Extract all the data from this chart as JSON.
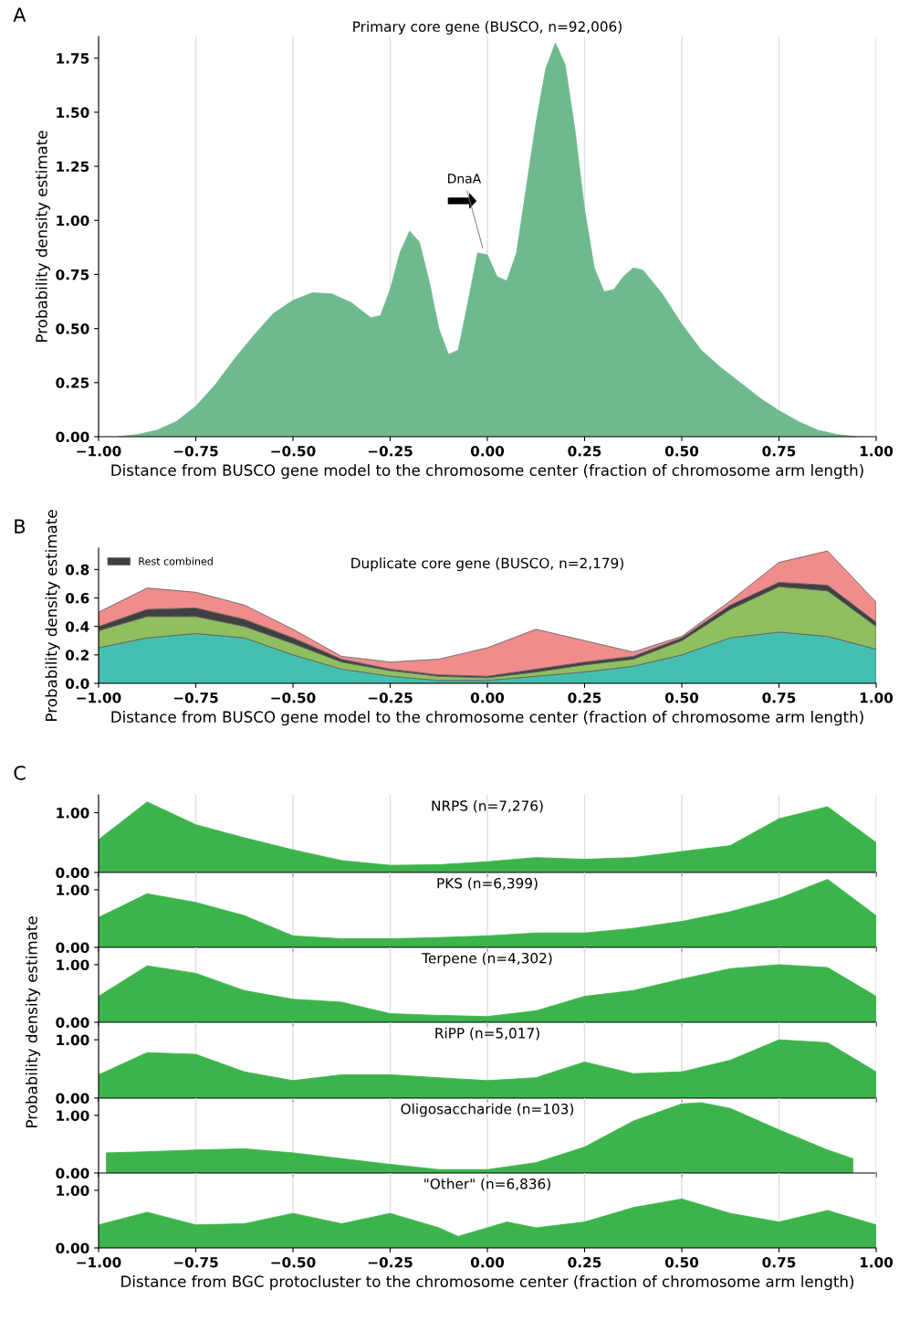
{
  "chart_data": [
    {
      "type": "area",
      "title": "Primary core gene (BUSCO, n=92,006)",
      "xlabel": "Distance from BUSCO gene model to the chromosome center (fraction of chromosome arm length)",
      "ylabel": "Probability density estimate",
      "annotations": [
        "A",
        {
          "text": "DnaA",
          "x": -0.01,
          "y": 0.86
        }
      ],
      "series": [
        {
          "color": "#6fb98f",
          "x": [
            -0.95,
            -0.9,
            -0.85,
            -0.8,
            -0.75,
            -0.7,
            -0.65,
            -0.6,
            -0.55,
            -0.5,
            -0.45,
            -0.4,
            -0.35,
            -0.3,
            -0.275,
            -0.25,
            -0.225,
            -0.2,
            -0.175,
            -0.15,
            -0.125,
            -0.1,
            -0.075,
            -0.05,
            -0.025,
            0,
            0.025,
            0.05,
            0.075,
            0.1,
            0.125,
            0.15,
            0.175,
            0.2,
            0.225,
            0.25,
            0.275,
            0.3,
            0.325,
            0.35,
            0.375,
            0.4,
            0.45,
            0.5,
            0.55,
            0.6,
            0.65,
            0.7,
            0.75,
            0.8,
            0.85,
            0.9,
            0.95
          ],
          "values": [
            0,
            0.01,
            0.03,
            0.07,
            0.14,
            0.24,
            0.36,
            0.47,
            0.57,
            0.63,
            0.665,
            0.66,
            0.62,
            0.55,
            0.56,
            0.68,
            0.85,
            0.95,
            0.9,
            0.72,
            0.5,
            0.38,
            0.4,
            0.62,
            0.85,
            0.84,
            0.74,
            0.72,
            0.85,
            1.15,
            1.45,
            1.7,
            1.82,
            1.72,
            1.42,
            1.05,
            0.78,
            0.67,
            0.68,
            0.74,
            0.78,
            0.77,
            0.66,
            0.52,
            0.4,
            0.32,
            0.25,
            0.18,
            0.12,
            0.07,
            0.03,
            0.01,
            0
          ]
        }
      ],
      "xlim": [
        -1,
        1
      ],
      "ylim": [
        0,
        1.85
      ],
      "xticks": [
        {
          "value": -1,
          "label": "−1.00"
        },
        {
          "value": -0.75,
          "label": "−0.75"
        },
        {
          "value": -0.5,
          "label": "−0.50"
        },
        {
          "value": -0.25,
          "label": "−0.25"
        },
        {
          "value": 0,
          "label": "0.00"
        },
        {
          "value": 0.25,
          "label": "0.25"
        },
        {
          "value": 0.5,
          "label": "0.50"
        },
        {
          "value": 0.75,
          "label": "0.75"
        },
        {
          "value": 1,
          "label": "1.00"
        }
      ],
      "yticks": [
        {
          "value": 0,
          "label": "0.00"
        },
        {
          "value": 0.25,
          "label": "0.25"
        },
        {
          "value": 0.5,
          "label": "0.50"
        },
        {
          "value": 0.75,
          "label": "0.75"
        },
        {
          "value": 1,
          "label": "1.00"
        },
        {
          "value": 1.25,
          "label": "1.25"
        },
        {
          "value": 1.5,
          "label": "1.50"
        },
        {
          "value": 1.75,
          "label": "1.75"
        }
      ],
      "grid": "x"
    },
    {
      "type": "area",
      "stacked": true,
      "title": "Duplicate core gene (BUSCO, n=2,179)",
      "xlabel": "Distance from BUSCO gene model to the chromosome center (fraction of chromosome arm length)",
      "ylabel": "Probability density estimate",
      "annotations": [
        "B"
      ],
      "x": [
        -1,
        -0.875,
        -0.75,
        -0.625,
        -0.5,
        -0.375,
        -0.25,
        -0.125,
        0,
        0.125,
        0.25,
        0.375,
        0.5,
        0.625,
        0.75,
        0.875,
        1
      ],
      "series": [
        {
          "color": "#45c0b0",
          "values": [
            0.25,
            0.32,
            0.35,
            0.32,
            0.2,
            0.1,
            0.05,
            0.02,
            0.02,
            0.05,
            0.08,
            0.12,
            0.2,
            0.32,
            0.36,
            0.33,
            0.24
          ]
        },
        {
          "color": "#8fbf5f",
          "values": [
            0.12,
            0.15,
            0.12,
            0.08,
            0.08,
            0.05,
            0.04,
            0.03,
            0.02,
            0.03,
            0.05,
            0.05,
            0.1,
            0.2,
            0.32,
            0.32,
            0.16
          ]
        },
        {
          "name": "Rest combined",
          "color": "#404040",
          "values": [
            0.03,
            0.05,
            0.06,
            0.05,
            0.04,
            0.02,
            0.01,
            0.01,
            0.01,
            0.02,
            0.02,
            0.02,
            0.02,
            0.03,
            0.03,
            0.04,
            0.03
          ]
        },
        {
          "color": "#f08c8c",
          "values": [
            0.1,
            0.15,
            0.11,
            0.1,
            0.06,
            0.02,
            0.05,
            0.11,
            0.2,
            0.28,
            0.15,
            0.03,
            0.01,
            0.03,
            0.14,
            0.24,
            0.14
          ]
        }
      ],
      "xlim": [
        -1,
        1
      ],
      "ylim": [
        0,
        0.95
      ],
      "xticks": [
        {
          "value": -1,
          "label": "−1.00"
        },
        {
          "value": -0.75,
          "label": "−0.75"
        },
        {
          "value": -0.5,
          "label": "−0.50"
        },
        {
          "value": -0.25,
          "label": "−0.25"
        },
        {
          "value": 0,
          "label": "0.00"
        },
        {
          "value": 0.25,
          "label": "0.25"
        },
        {
          "value": 0.5,
          "label": "0.50"
        },
        {
          "value": 0.75,
          "label": "0.75"
        },
        {
          "value": 1,
          "label": "1.00"
        }
      ],
      "yticks": [
        {
          "value": 0,
          "label": "0.0"
        },
        0.2,
        0.4,
        0.6,
        0.8
      ],
      "grid": false,
      "legend": "top left"
    },
    {
      "type": "area",
      "title": "NRPS (n=7,276)",
      "annotations": [
        "C"
      ],
      "series": [
        {
          "color": "#3cb44b",
          "x": [
            -1,
            -0.875,
            -0.75,
            -0.625,
            -0.5,
            -0.375,
            -0.25,
            -0.125,
            0,
            0.125,
            0.25,
            0.375,
            0.5,
            0.625,
            0.75,
            0.875,
            1
          ],
          "values": [
            0.55,
            1.18,
            0.8,
            0.58,
            0.38,
            0.2,
            0.12,
            0.13,
            0.18,
            0.25,
            0.22,
            0.25,
            0.35,
            0.45,
            0.9,
            1.1,
            0.5
          ]
        }
      ],
      "xlim": [
        -1,
        1
      ],
      "ylim": [
        0,
        1.3
      ],
      "yticks": [
        {
          "value": 0,
          "label": "0.00"
        },
        {
          "value": 1,
          "label": "1.00"
        }
      ],
      "grid": "x",
      "tick_labels": "y"
    },
    {
      "type": "area",
      "title": "PKS (n=6,399)",
      "series": [
        {
          "color": "#3cb44b",
          "x": [
            -1,
            -0.875,
            -0.75,
            -0.625,
            -0.5,
            -0.375,
            -0.25,
            -0.125,
            0,
            0.125,
            0.25,
            0.375,
            0.5,
            0.625,
            0.75,
            0.875,
            1
          ],
          "values": [
            0.52,
            0.93,
            0.78,
            0.55,
            0.2,
            0.15,
            0.15,
            0.17,
            0.2,
            0.25,
            0.25,
            0.33,
            0.45,
            0.62,
            0.85,
            1.18,
            0.55
          ]
        }
      ],
      "xlim": [
        -1,
        1
      ],
      "ylim": [
        0,
        1.3
      ],
      "yticks": [
        {
          "value": 0,
          "label": "0.00"
        },
        {
          "value": 1,
          "label": "1.00"
        }
      ],
      "grid": "x",
      "tick_labels": "y"
    },
    {
      "type": "area",
      "title": "Terpene (n=4,302)",
      "series": [
        {
          "color": "#3cb44b",
          "x": [
            -1,
            -0.875,
            -0.75,
            -0.625,
            -0.5,
            -0.375,
            -0.25,
            -0.125,
            0,
            0.125,
            0.25,
            0.375,
            0.5,
            0.625,
            0.75,
            0.875,
            1
          ],
          "values": [
            0.45,
            0.98,
            0.85,
            0.55,
            0.4,
            0.35,
            0.15,
            0.12,
            0.1,
            0.2,
            0.45,
            0.55,
            0.75,
            0.93,
            1.0,
            0.95,
            0.45
          ]
        }
      ],
      "xlim": [
        -1,
        1
      ],
      "ylim": [
        0,
        1.3
      ],
      "yticks": [
        {
          "value": 0,
          "label": "0.00"
        },
        {
          "value": 1,
          "label": "1.00"
        }
      ],
      "grid": "x",
      "tick_labels": "y"
    },
    {
      "type": "area",
      "title": "RiPP (n=5,017)",
      "ylabel": "Probability density estimate",
      "series": [
        {
          "color": "#3cb44b",
          "x": [
            -1,
            -0.875,
            -0.75,
            -0.625,
            -0.5,
            -0.375,
            -0.25,
            -0.125,
            0,
            0.125,
            0.25,
            0.375,
            0.5,
            0.625,
            0.75,
            0.875,
            1
          ],
          "values": [
            0.4,
            0.78,
            0.75,
            0.45,
            0.3,
            0.4,
            0.4,
            0.35,
            0.3,
            0.35,
            0.62,
            0.42,
            0.45,
            0.65,
            1.0,
            0.95,
            0.45
          ]
        }
      ],
      "xlim": [
        -1,
        1
      ],
      "ylim": [
        0,
        1.3
      ],
      "yticks": [
        {
          "value": 0,
          "label": "0.00"
        },
        {
          "value": 1,
          "label": "1.00"
        }
      ],
      "grid": "x",
      "tick_labels": "y"
    },
    {
      "type": "area",
      "title": "Oligosaccharide (n=103)",
      "series": [
        {
          "color": "#3cb44b",
          "x": [
            -0.98,
            -0.875,
            -0.75,
            -0.625,
            -0.5,
            -0.375,
            -0.25,
            -0.125,
            0,
            0.125,
            0.25,
            0.375,
            0.5,
            0.55,
            0.625,
            0.75,
            0.875,
            0.94
          ],
          "values": [
            0.35,
            0.37,
            0.4,
            0.42,
            0.35,
            0.25,
            0.15,
            0.06,
            0.06,
            0.18,
            0.45,
            0.9,
            1.2,
            1.22,
            1.12,
            0.75,
            0.4,
            0.25
          ]
        }
      ],
      "xlim": [
        -1,
        1
      ],
      "ylim": [
        0,
        1.3
      ],
      "yticks": [
        {
          "value": 0,
          "label": "0.00"
        },
        {
          "value": 1,
          "label": "1.00"
        }
      ],
      "grid": "x",
      "tick_labels": "y"
    },
    {
      "type": "area",
      "title": "\"Other\" (n=6,836)",
      "xlabel": "Distance from BGC protocluster to the chromosome center (fraction of chromosome arm length)",
      "series": [
        {
          "color": "#3cb44b",
          "x": [
            -1,
            -0.875,
            -0.75,
            -0.625,
            -0.5,
            -0.375,
            -0.25,
            -0.125,
            -0.075,
            0,
            0.05,
            0.125,
            0.25,
            0.375,
            0.5,
            0.625,
            0.75,
            0.875,
            1
          ],
          "values": [
            0.4,
            0.62,
            0.4,
            0.42,
            0.6,
            0.42,
            0.6,
            0.35,
            0.2,
            0.35,
            0.45,
            0.35,
            0.45,
            0.7,
            0.85,
            0.6,
            0.45,
            0.65,
            0.4
          ]
        }
      ],
      "xlim": [
        -1,
        1
      ],
      "ylim": [
        0,
        1.3
      ],
      "xticks": [
        {
          "value": -1,
          "label": "−1.00"
        },
        {
          "value": -0.75,
          "label": "−0.75"
        },
        {
          "value": -0.5,
          "label": "−0.50"
        },
        {
          "value": -0.25,
          "label": "−0.25"
        },
        {
          "value": 0,
          "label": "0.00"
        },
        {
          "value": 0.25,
          "label": "0.25"
        },
        {
          "value": 0.5,
          "label": "0.50"
        },
        {
          "value": 0.75,
          "label": "0.75"
        },
        {
          "value": 1,
          "label": "1.00"
        }
      ],
      "yticks": [
        {
          "value": 0,
          "label": "0.00"
        },
        {
          "value": 1,
          "label": "1.00"
        }
      ],
      "grid": "x"
    }
  ]
}
